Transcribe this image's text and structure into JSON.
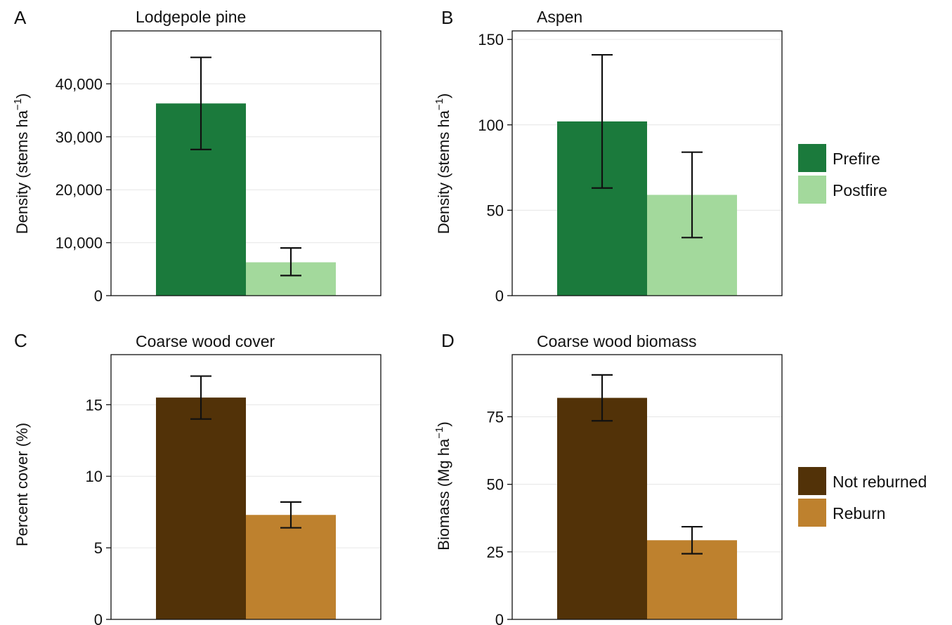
{
  "legend_fire": {
    "items": [
      {
        "label": "Prefire",
        "color": "#1b7a3c"
      },
      {
        "label": "Postfire",
        "color": "#a3d99c"
      }
    ]
  },
  "legend_reburn": {
    "items": [
      {
        "label": "Not reburned",
        "color": "#523208"
      },
      {
        "label": "Reburn",
        "color": "#be812e"
      }
    ]
  },
  "chart_data": [
    {
      "panel": "A",
      "type": "bar",
      "title": "Lodgepole pine",
      "ylabel": "Density (stems ha",
      "ylabel_sup": "−1",
      "ylabel_close": ")",
      "ylim": [
        0,
        50000
      ],
      "ticks": [
        0,
        10000,
        20000,
        30000,
        40000
      ],
      "tick_labels": [
        "0",
        "10,000",
        "20,000",
        "30,000",
        "40,000"
      ],
      "grid": true,
      "series": [
        {
          "name": "Prefire",
          "value": 36300,
          "err_low": 27600,
          "err_high": 45000,
          "color": "#1b7a3c"
        },
        {
          "name": "Postfire",
          "value": 6300,
          "err_low": 3800,
          "err_high": 9000,
          "color": "#a3d99c"
        }
      ]
    },
    {
      "panel": "B",
      "type": "bar",
      "title": "Aspen",
      "ylabel": "Density (stems ha",
      "ylabel_sup": "−1",
      "ylabel_close": ")",
      "ylim": [
        0,
        155
      ],
      "ticks": [
        0,
        50,
        100,
        150
      ],
      "tick_labels": [
        "0",
        "50",
        "100",
        "150"
      ],
      "grid": true,
      "series": [
        {
          "name": "Prefire",
          "value": 102,
          "err_low": 63,
          "err_high": 141,
          "color": "#1b7a3c"
        },
        {
          "name": "Postfire",
          "value": 59,
          "err_low": 34,
          "err_high": 84,
          "color": "#a3d99c"
        }
      ]
    },
    {
      "panel": "C",
      "type": "bar",
      "title": "Coarse wood cover",
      "ylabel": "Percent cover (%)",
      "ylabel_sup": "",
      "ylabel_close": "",
      "ylim": [
        0,
        18.5
      ],
      "ticks": [
        0,
        5,
        10,
        15
      ],
      "tick_labels": [
        "0",
        "5",
        "10",
        "15"
      ],
      "grid": true,
      "series": [
        {
          "name": "Not reburned",
          "value": 15.5,
          "err_low": 14.0,
          "err_high": 17.0,
          "color": "#523208"
        },
        {
          "name": "Reburn",
          "value": 7.3,
          "err_low": 6.4,
          "err_high": 8.2,
          "color": "#be812e"
        }
      ]
    },
    {
      "panel": "D",
      "type": "bar",
      "title": "Coarse wood biomass",
      "ylabel": "Biomass (Mg ha",
      "ylabel_sup": "−1",
      "ylabel_close": ")",
      "ylim": [
        0,
        98
      ],
      "ticks": [
        0,
        25,
        50,
        75
      ],
      "tick_labels": [
        "0",
        "25",
        "50",
        "75"
      ],
      "grid": true,
      "series": [
        {
          "name": "Not reburned",
          "value": 82,
          "err_low": 73.5,
          "err_high": 90.5,
          "color": "#523208"
        },
        {
          "name": "Reburn",
          "value": 29.3,
          "err_low": 24.3,
          "err_high": 34.3,
          "color": "#be812e"
        }
      ]
    }
  ]
}
